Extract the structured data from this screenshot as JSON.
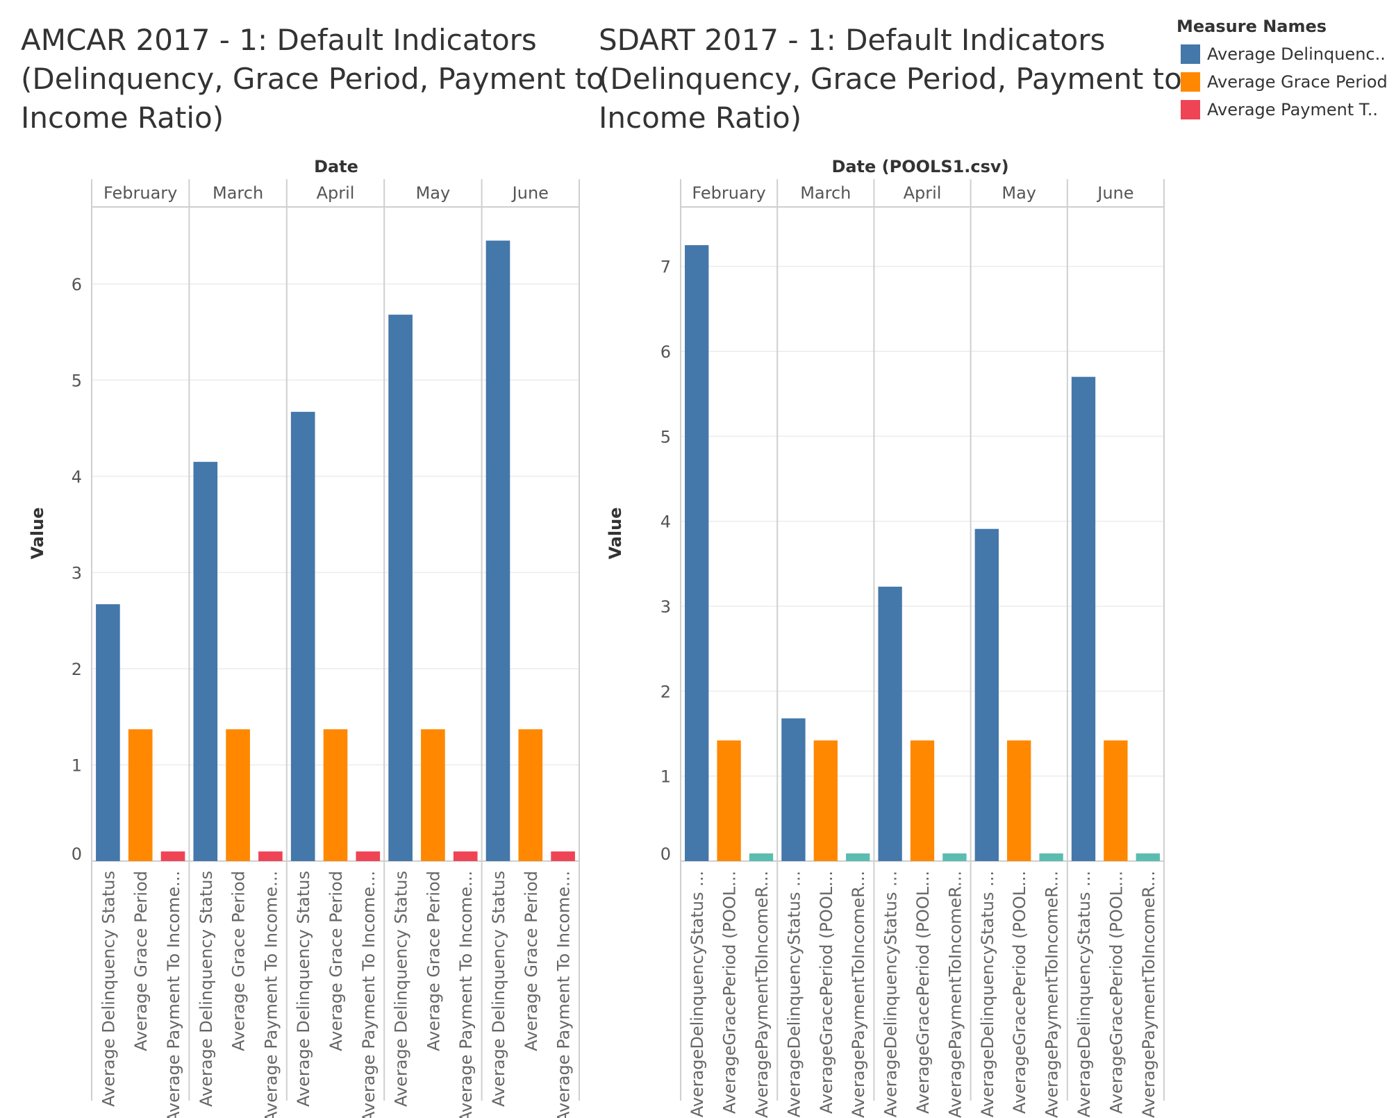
{
  "legend": {
    "title": "Measure Names",
    "items": [
      {
        "label": "Average Delinquenc..",
        "color": "#4477aa"
      },
      {
        "label": "Average Grace Period",
        "color": "#ff8800"
      },
      {
        "label": "Average Payment T..",
        "color": "#ee4455"
      }
    ]
  },
  "chart_data": [
    {
      "type": "bar",
      "title_lines": [
        "AMCAR 2017 - 1: Default Indicators",
        "(Delinquency, Grace Period, Payment to",
        "Income Ratio)"
      ],
      "column_header": "Date",
      "ylabel": "Value",
      "ylim": [
        0,
        6.8
      ],
      "yticks": [
        0,
        1,
        2,
        3,
        4,
        5,
        6
      ],
      "grid": "horizontal",
      "months": [
        "February",
        "March",
        "April",
        "May",
        "June"
      ],
      "measures": [
        "Average Delinquency Status",
        "Average Grace Period",
        "Average Payment To Income..."
      ],
      "colors": [
        "#4477aa",
        "#ff8800",
        "#ee4455"
      ],
      "values": [
        [
          2.67,
          1.37,
          0.1
        ],
        [
          4.15,
          1.37,
          0.1
        ],
        [
          4.67,
          1.37,
          0.1
        ],
        [
          5.68,
          1.37,
          0.1
        ],
        [
          6.45,
          1.37,
          0.1
        ]
      ]
    },
    {
      "type": "bar",
      "title_lines": [
        "SDART 2017 - 1: Default Indicators",
        "(Delinquency, Grace Period, Payment to",
        "Income Ratio)"
      ],
      "column_header": "Date (POOLS1.csv)",
      "ylabel": "Value",
      "ylim": [
        0,
        7.7
      ],
      "yticks": [
        0,
        1,
        2,
        3,
        4,
        5,
        6,
        7
      ],
      "grid": "horizontal",
      "months": [
        "February",
        "March",
        "April",
        "May",
        "June"
      ],
      "measures": [
        "AverageDelinquencyStatus ...",
        "AverageGracePeriod (POOL...",
        "AveragePaymentToIncomeR..."
      ],
      "colors": [
        "#4477aa",
        "#ff8800",
        "#5bbcb0"
      ],
      "values": [
        [
          7.25,
          1.42,
          0.09
        ],
        [
          1.68,
          1.42,
          0.09
        ],
        [
          3.23,
          1.42,
          0.09
        ],
        [
          3.91,
          1.42,
          0.09
        ],
        [
          5.7,
          1.42,
          0.09
        ]
      ]
    }
  ]
}
